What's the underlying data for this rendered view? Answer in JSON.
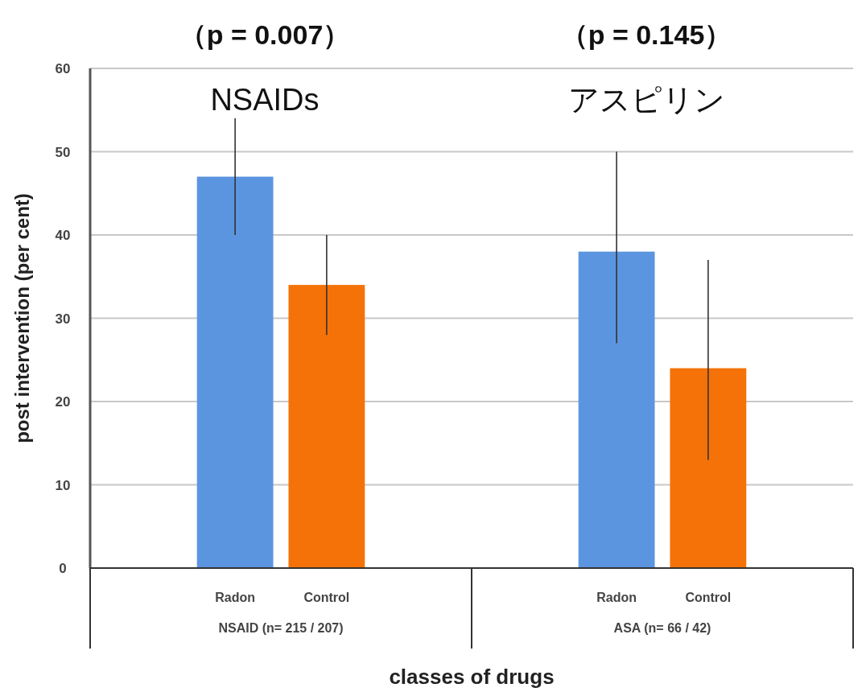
{
  "chart_data": {
    "type": "bar",
    "xlabel": "classes of drugs",
    "ylabel": "post intervention (per cent)",
    "categories": [
      "NSAID (n= 215 / 207)",
      "ASA (n= 66 / 42)"
    ],
    "series": [
      {
        "name": "Radon",
        "color": "#5b95e0",
        "values": [
          47,
          38
        ],
        "errors": [
          [
            40,
            54
          ],
          [
            27,
            50
          ]
        ]
      },
      {
        "name": "Control",
        "color": "#f47207",
        "values": [
          34,
          24
        ],
        "errors": [
          [
            28,
            40
          ],
          [
            13,
            37
          ]
        ]
      }
    ],
    "ylim": [
      0,
      60
    ],
    "yticks": [
      0,
      10,
      20,
      30,
      40,
      50,
      60
    ],
    "grid": "y",
    "annotations": [
      "（p = 0.007）",
      "（p = 0.145）",
      "NSAIDs",
      "アスピリン"
    ]
  }
}
